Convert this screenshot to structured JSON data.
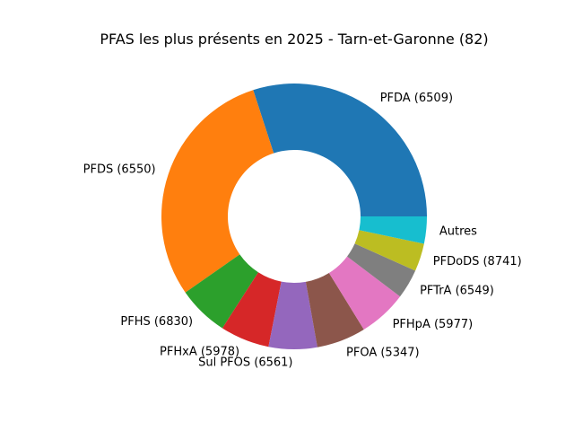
{
  "chart_data": {
    "type": "pie",
    "title": "PFAS les plus présents en 2025 - Tarn-et-Garonne (82)",
    "donut": true,
    "start_angle_deg": 0,
    "direction": "counterclockwise",
    "slices": [
      {
        "label": "PFDA (6509)",
        "value": 30.0,
        "color": "#1f77b4"
      },
      {
        "label": "PFDS (6550)",
        "value": 29.7,
        "color": "#ff7f0e"
      },
      {
        "label": "PFHS (6830)",
        "value": 6.2,
        "color": "#2ca02c"
      },
      {
        "label": "PFHxA (5978)",
        "value": 6.0,
        "color": "#d62728"
      },
      {
        "label": "Sul PFOS (6561)",
        "value": 5.9,
        "color": "#9467bd"
      },
      {
        "label": "PFOA (5347)",
        "value": 6.0,
        "color": "#8c564b"
      },
      {
        "label": "PFHpA (5977)",
        "value": 5.9,
        "color": "#e377c2"
      },
      {
        "label": "PFTrA (6549)",
        "value": 3.6,
        "color": "#7f7f7f"
      },
      {
        "label": "PFDoDS (8741)",
        "value": 3.4,
        "color": "#bcbd22"
      },
      {
        "label": "Autres",
        "value": 3.3,
        "color": "#17becf"
      }
    ]
  }
}
